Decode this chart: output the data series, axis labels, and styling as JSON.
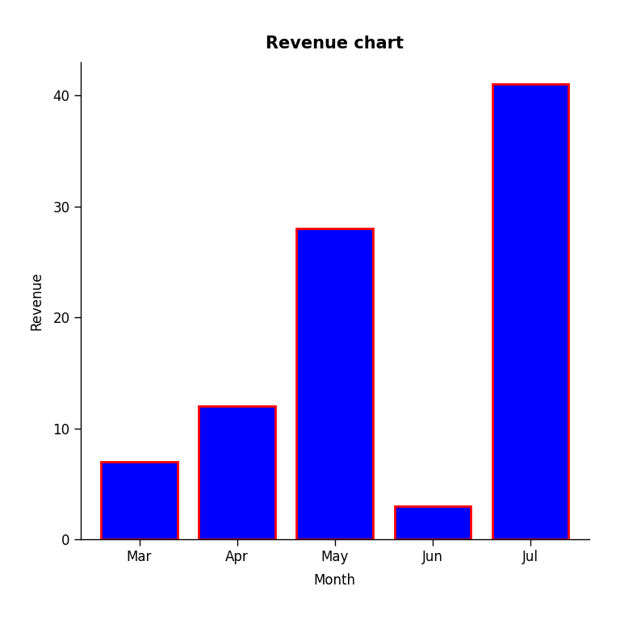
{
  "categories": [
    "Mar",
    "Apr",
    "May",
    "Jun",
    "Jul"
  ],
  "values": [
    7,
    12,
    28,
    3,
    41
  ],
  "bar_color": "#0000FF",
  "bar_edgecolor": "#FF0000",
  "title": "Revenue chart",
  "xlabel": "Month",
  "ylabel": "Revenue",
  "ylim": [
    0,
    43
  ],
  "yticks": [
    0,
    10,
    20,
    30,
    40
  ],
  "title_fontsize": 15,
  "axis_label_fontsize": 12,
  "tick_fontsize": 12,
  "background_color": "#FFFFFF",
  "bar_width": 0.78,
  "edgewidth": 2.0
}
